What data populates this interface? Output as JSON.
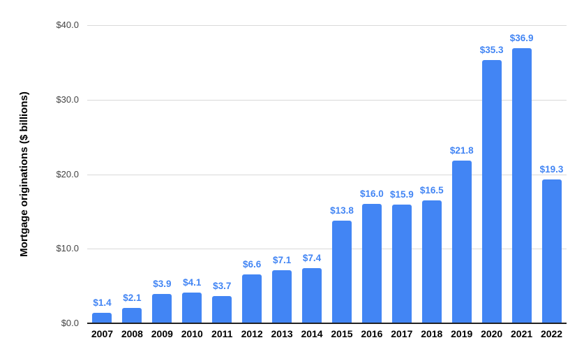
{
  "chart": {
    "colors": {
      "bar": "#4285f4",
      "data_label": "#4285f4",
      "gridline": "#d9d9d9",
      "baseline": "#212121",
      "tick_text": "#444444",
      "category_text": "#000000",
      "background": "#ffffff"
    }
  },
  "chart_data": {
    "type": "bar",
    "title": "",
    "xlabel": "",
    "ylabel": "Mortgage originations ($ billions)",
    "categories": [
      "2007",
      "2008",
      "2009",
      "2010",
      "2011",
      "2012",
      "2013",
      "2014",
      "2015",
      "2016",
      "2017",
      "2018",
      "2019",
      "2020",
      "2021",
      "2022"
    ],
    "values": [
      1.4,
      2.1,
      3.9,
      4.1,
      3.7,
      6.6,
      7.1,
      7.4,
      13.8,
      16.0,
      15.9,
      16.5,
      21.8,
      35.3,
      36.9,
      19.3
    ],
    "data_labels": [
      "$1.4",
      "$2.1",
      "$3.9",
      "$4.1",
      "$3.7",
      "$6.6",
      "$7.1",
      "$7.4",
      "$13.8",
      "$16.0",
      "$15.9",
      "$16.5",
      "$21.8",
      "$35.3",
      "$36.9",
      "$19.3"
    ],
    "ylim": [
      0,
      40
    ],
    "yticks": [
      0,
      10,
      20,
      30,
      40
    ],
    "ytick_labels": [
      "$0.0",
      "$10.0",
      "$20.0",
      "$30.0",
      "$40.0"
    ],
    "grid": true,
    "legend": false,
    "bar_color": "#4285f4"
  }
}
